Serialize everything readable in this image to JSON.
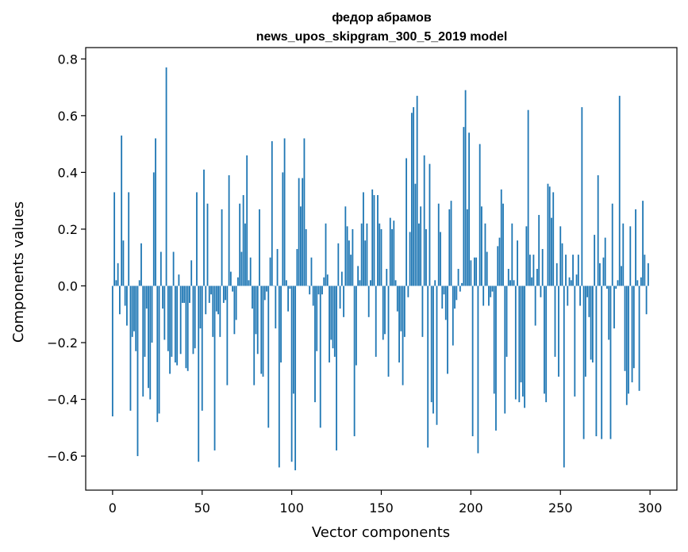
{
  "chart_data": {
    "type": "bar",
    "title": "федор абрамов",
    "subtitle": "news_upos_skipgram_300_5_2019 model",
    "xlabel": "Vector components",
    "ylabel": "Components values",
    "xlim": [
      -15,
      315
    ],
    "ylim": [
      -0.72,
      0.84
    ],
    "xticks": [
      0,
      50,
      100,
      150,
      200,
      250,
      300
    ],
    "xtick_labels": [
      "0",
      "50",
      "100",
      "150",
      "200",
      "250",
      "300"
    ],
    "yticks": [
      -0.6,
      -0.4,
      -0.2,
      0.0,
      0.2,
      0.4,
      0.6,
      0.8
    ],
    "ytick_labels": [
      "−0.6",
      "−0.4",
      "−0.2",
      "0.0",
      "0.2",
      "0.4",
      "0.6",
      "0.8"
    ],
    "bar_color": "#1f77b4",
    "grid": false,
    "x": "0..299 (vector component index)",
    "values": [
      -0.46,
      0.33,
      0.02,
      0.08,
      -0.1,
      0.53,
      0.16,
      -0.07,
      -0.14,
      0.33,
      -0.44,
      -0.18,
      -0.16,
      -0.23,
      -0.6,
      0.02,
      0.15,
      -0.39,
      -0.25,
      -0.08,
      -0.36,
      -0.4,
      -0.2,
      0.4,
      0.52,
      -0.48,
      -0.45,
      0.12,
      -0.08,
      -0.19,
      0.77,
      -0.23,
      -0.31,
      -0.25,
      0.12,
      -0.27,
      -0.28,
      0.04,
      -0.24,
      -0.06,
      -0.06,
      -0.29,
      -0.3,
      -0.06,
      0.09,
      -0.24,
      -0.22,
      0.33,
      -0.62,
      -0.15,
      -0.44,
      0.41,
      -0.1,
      0.29,
      -0.06,
      -0.03,
      -0.18,
      -0.58,
      -0.09,
      -0.1,
      -0.18,
      0.27,
      -0.06,
      -0.05,
      -0.35,
      0.39,
      0.05,
      -0.02,
      -0.17,
      -0.12,
      0.03,
      0.29,
      0.12,
      0.32,
      0.22,
      0.46,
      0.02,
      0.1,
      -0.08,
      -0.35,
      -0.17,
      -0.24,
      0.27,
      -0.31,
      -0.32,
      -0.05,
      -0.02,
      -0.5,
      0.1,
      0.51,
      0.0,
      -0.15,
      0.13,
      -0.64,
      -0.27,
      0.4,
      0.52,
      0.02,
      -0.09,
      -0.01,
      -0.62,
      -0.38,
      -0.65,
      0.13,
      0.38,
      0.28,
      0.38,
      0.52,
      0.2,
      0.0,
      -0.03,
      0.1,
      -0.07,
      -0.41,
      -0.23,
      -0.03,
      -0.5,
      -0.03,
      0.03,
      0.22,
      0.04,
      -0.27,
      -0.19,
      -0.22,
      -0.25,
      -0.58,
      0.15,
      -0.08,
      0.05,
      -0.11,
      0.28,
      0.21,
      0.16,
      0.11,
      0.2,
      -0.53,
      -0.28,
      0.07,
      0.02,
      0.22,
      0.33,
      0.16,
      0.22,
      -0.11,
      0.02,
      0.34,
      0.32,
      -0.25,
      0.32,
      0.22,
      0.2,
      -0.19,
      -0.17,
      0.06,
      -0.32,
      0.24,
      0.2,
      0.23,
      0.02,
      -0.09,
      -0.27,
      -0.16,
      -0.35,
      -0.18,
      0.45,
      -0.04,
      0.19,
      0.61,
      0.63,
      0.36,
      0.67,
      0.22,
      0.28,
      -0.18,
      0.46,
      0.2,
      -0.57,
      0.43,
      -0.41,
      -0.45,
      0.02,
      -0.49,
      0.29,
      0.19,
      -0.08,
      -0.03,
      -0.12,
      -0.31,
      0.27,
      0.3,
      -0.21,
      -0.08,
      -0.05,
      0.06,
      -0.02,
      0.01,
      0.56,
      0.69,
      0.27,
      0.54,
      0.09,
      -0.53,
      0.1,
      0.1,
      -0.59,
      0.5,
      0.28,
      -0.07,
      0.22,
      0.12,
      -0.07,
      -0.04,
      -0.02,
      -0.38,
      -0.51,
      0.14,
      0.17,
      0.34,
      0.29,
      -0.45,
      -0.25,
      0.06,
      0.02,
      0.22,
      0.02,
      -0.4,
      0.16,
      -0.41,
      -0.34,
      -0.39,
      -0.43,
      0.21,
      0.62,
      0.11,
      0.03,
      0.11,
      -0.14,
      0.06,
      0.25,
      -0.04,
      0.13,
      -0.38,
      -0.41,
      0.36,
      0.35,
      0.24,
      0.33,
      -0.25,
      0.08,
      -0.32,
      0.21,
      0.15,
      -0.64,
      0.11,
      -0.07,
      0.03,
      0.02,
      0.11,
      -0.39,
      0.04,
      0.11,
      -0.07,
      0.63,
      -0.54,
      -0.32,
      -0.04,
      -0.11,
      -0.26,
      -0.27,
      0.18,
      -0.53,
      0.39,
      0.08,
      -0.54,
      0.1,
      0.17,
      -0.01,
      -0.19,
      -0.54,
      0.29,
      -0.15,
      -0.01,
      0.02,
      0.67,
      0.07,
      0.22,
      -0.3,
      -0.42,
      -0.38,
      0.21,
      -0.34,
      -0.29,
      0.27,
      0.02,
      -0.37,
      0.03,
      0.3,
      0.11,
      -0.1,
      0.08
    ]
  }
}
